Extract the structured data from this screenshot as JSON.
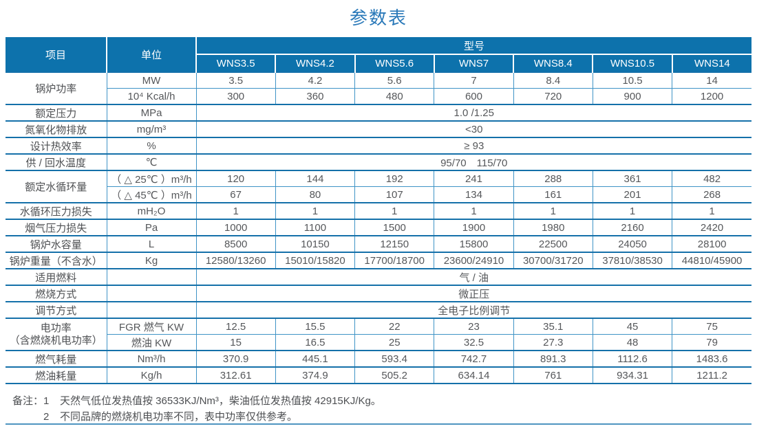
{
  "title": "参数表",
  "table": {
    "header": {
      "item": "项目",
      "unit": "单位",
      "model_group": "型号",
      "models": [
        "WNS3.5",
        "WNS4.2",
        "WNS5.6",
        "WNS7",
        "WNS8.4",
        "WNS10.5",
        "WNS14"
      ]
    },
    "rows": [
      {
        "label": "锅炉功率",
        "unit": "MW",
        "values": [
          "3.5",
          "4.2",
          "5.6",
          "7",
          "8.4",
          "10.5",
          "14"
        ]
      },
      {
        "unit": "10⁴ Kcal/h",
        "values": [
          "300",
          "360",
          "480",
          "600",
          "720",
          "900",
          "1200"
        ]
      },
      {
        "label": "额定压力",
        "unit": "MPa",
        "span": "1.0 /1.25"
      },
      {
        "label": "氮氧化物排放",
        "unit": "mg/m³",
        "span": "<30"
      },
      {
        "label": "设计热效率",
        "unit": "%",
        "span": "≥ 93"
      },
      {
        "label": "供 / 回水温度",
        "unit": "℃",
        "span": "95/70　115/70"
      },
      {
        "label": "额定水循环量",
        "unit": "（ △ 25℃ ）m³/h",
        "values": [
          "120",
          "144",
          "192",
          "241",
          "288",
          "361",
          "482"
        ]
      },
      {
        "unit": "（ △ 45℃ ）m³/h",
        "values": [
          "67",
          "80",
          "107",
          "134",
          "161",
          "201",
          "268"
        ]
      },
      {
        "label": "水循环压力损失",
        "unit": "mH₂O",
        "values": [
          "1",
          "1",
          "1",
          "1",
          "1",
          "1",
          "1"
        ]
      },
      {
        "label": "烟气压力损失",
        "unit": "Pa",
        "values": [
          "1000",
          "1100",
          "1500",
          "1900",
          "1980",
          "2160",
          "2420"
        ]
      },
      {
        "label": "锅炉水容量",
        "unit": "L",
        "values": [
          "8500",
          "10150",
          "12150",
          "15800",
          "22500",
          "24050",
          "28100"
        ]
      },
      {
        "label": "锅炉重量（不含水）",
        "unit": "Kg",
        "values": [
          "12580/13260",
          "15010/15820",
          "17700/18700",
          "23600/24910",
          "30700/31720",
          "37810/38530",
          "44810/45900"
        ]
      },
      {
        "label": "适用燃料",
        "unit": "",
        "span": "气 / 油"
      },
      {
        "label": "燃烧方式",
        "unit": "",
        "span": "微正压"
      },
      {
        "label": "调节方式",
        "unit": "",
        "span": "全电子比例调节"
      },
      {
        "label": "电功率",
        "label2": "（含燃烧机电功率）",
        "unit": "FGR 燃气 KW",
        "values": [
          "12.5",
          "15.5",
          "22",
          "23",
          "35.1",
          "45",
          "75"
        ]
      },
      {
        "unit": "燃油 KW",
        "values": [
          "15",
          "16.5",
          "25",
          "32.5",
          "27.3",
          "48",
          "79"
        ]
      },
      {
        "label": "燃气耗量",
        "unit": "Nm³/h",
        "values": [
          "370.9",
          "445.1",
          "593.4",
          "742.7",
          "891.3",
          "1112.6",
          "1483.6"
        ]
      },
      {
        "label": "燃油耗量",
        "unit": "Kg/h",
        "values": [
          "312.61",
          "374.9",
          "505.2",
          "634.14",
          "761",
          "934.31",
          "1211.2"
        ]
      }
    ]
  },
  "notes": {
    "label": "备注：",
    "items": [
      {
        "num": "1",
        "text": "天然气低位发热值按 36533KJ/Nm³，柴油低位发热值按 42915KJ/Kg。"
      },
      {
        "num": "2",
        "text": "不同品牌的燃烧机电功率不同，表中功率仅供参考。"
      }
    ]
  },
  "colors": {
    "header_bg": "#0d72ac",
    "grid_line": "#3e93c6",
    "group_line": "#1470a9",
    "title_blue": "#2a79b9",
    "body_text": "#55575a"
  }
}
